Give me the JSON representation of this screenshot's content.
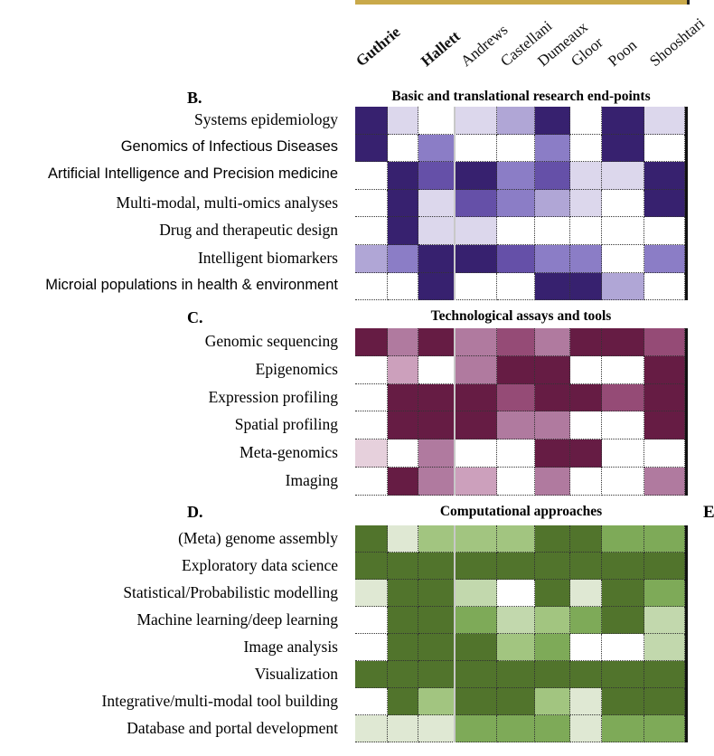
{
  "chart_data": {
    "type": "heatmap",
    "columns": [
      "Guthrie",
      "",
      "Hallett",
      "Andrews",
      "Castellani",
      "Dumeaux",
      "Gloor",
      "Poon",
      "Shooshtari"
    ],
    "bold_columns": [
      "Guthrie",
      "Hallett"
    ],
    "scale": "0 (none) to 5 (strongest)",
    "panels": [
      {
        "letter": "B.",
        "title": "Basic and translational research end-points",
        "palette": [
          "#ffffff",
          "#dcd7ec",
          "#b0a6d6",
          "#8b7dc6",
          "#6550a8",
          "#37216f"
        ],
        "rows": [
          {
            "label": "Systems epidemiology",
            "values": [
              5,
              1,
              0,
              1,
              2,
              5,
              0,
              5,
              1
            ]
          },
          {
            "label": "Genomics of Infectious Diseases",
            "values": [
              5,
              0,
              3,
              0,
              0,
              3,
              0,
              5,
              0
            ]
          },
          {
            "label": "Artificial Intelligence and Precision medicine",
            "values": [
              0,
              5,
              4,
              5,
              3,
              4,
              1,
              1,
              5
            ]
          },
          {
            "label": "Multi-modal, multi-omics analyses",
            "values": [
              0,
              5,
              1,
              4,
              3,
              2,
              1,
              0,
              5
            ]
          },
          {
            "label": "Drug and therapeutic design",
            "values": [
              0,
              5,
              1,
              1,
              0,
              0,
              0,
              0,
              0
            ]
          },
          {
            "label": "Intelligent biomarkers",
            "values": [
              2,
              3,
              5,
              5,
              4,
              3,
              3,
              0,
              3
            ]
          },
          {
            "label": "Microial populations in health & environment",
            "values": [
              0,
              0,
              5,
              0,
              0,
              5,
              5,
              2,
              0
            ]
          }
        ]
      },
      {
        "letter": "C.",
        "title": "Technological assays and tools",
        "palette": [
          "#ffffff",
          "#e6d0dc",
          "#cca0bc",
          "#b07a9f",
          "#954b76",
          "#661c44"
        ],
        "rows": [
          {
            "label": "Genomic sequencing",
            "values": [
              5,
              3,
              5,
              3,
              4,
              3,
              5,
              5,
              4
            ]
          },
          {
            "label": "Epigenomics",
            "values": [
              0,
              2,
              0,
              3,
              5,
              5,
              0,
              0,
              5
            ]
          },
          {
            "label": "Expression profiling",
            "values": [
              0,
              5,
              5,
              5,
              4,
              5,
              5,
              4,
              5
            ]
          },
          {
            "label": "Spatial profiling",
            "values": [
              0,
              5,
              5,
              5,
              3,
              3,
              0,
              0,
              5
            ]
          },
          {
            "label": "Meta-genomics",
            "values": [
              1,
              0,
              3,
              0,
              0,
              5,
              5,
              0,
              0
            ]
          },
          {
            "label": "Imaging",
            "values": [
              0,
              5,
              3,
              2,
              0,
              3,
              0,
              0,
              3
            ]
          }
        ]
      },
      {
        "letter": "D.",
        "title": "Computational approaches",
        "palette": [
          "#ffffff",
          "#dfe8d3",
          "#c2d8ad",
          "#a2c580",
          "#7eaa58",
          "#51742c"
        ],
        "rows": [
          {
            "label": "(Meta) genome assembly",
            "values": [
              5,
              1,
              3,
              3,
              3,
              5,
              5,
              4,
              4
            ]
          },
          {
            "label": "Exploratory data science",
            "values": [
              5,
              5,
              5,
              5,
              5,
              5,
              5,
              5,
              5
            ]
          },
          {
            "label": "Statistical/Probabilistic modelling",
            "values": [
              1,
              5,
              5,
              2,
              0,
              5,
              1,
              5,
              4
            ]
          },
          {
            "label": "Machine learning/deep learning",
            "values": [
              0,
              5,
              5,
              4,
              2,
              3,
              4,
              5,
              2
            ]
          },
          {
            "label": "Image analysis",
            "values": [
              0,
              5,
              5,
              5,
              3,
              4,
              0,
              0,
              2
            ]
          },
          {
            "label": "Visualization",
            "values": [
              5,
              5,
              5,
              5,
              5,
              5,
              5,
              5,
              5
            ]
          },
          {
            "label": "Integrative/multi-modal tool building",
            "values": [
              0,
              5,
              3,
              5,
              5,
              3,
              1,
              5,
              5
            ]
          },
          {
            "label": "Database and portal development",
            "values": [
              1,
              1,
              1,
              4,
              4,
              4,
              1,
              4,
              4
            ]
          }
        ]
      }
    ]
  },
  "cut_off_letter": "E"
}
